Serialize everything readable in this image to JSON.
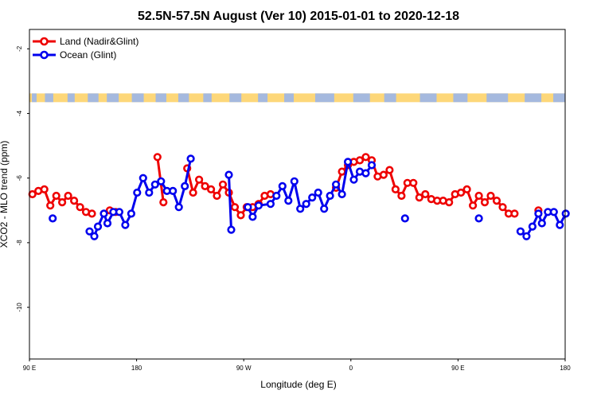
{
  "chart_data": {
    "type": "line",
    "title": "52.5N-57.5N August (Ver 10)   2015-01-01 to 2020-12-18",
    "xlabel": "Longitude (deg E)",
    "ylabel": "XCO2 - MLO trend (ppm)",
    "xlim": [
      90,
      540
    ],
    "ylim": [
      -11.6,
      -1.4
    ],
    "x_ticks": [
      {
        "value": 90,
        "label": "90 E"
      },
      {
        "value": 180,
        "label": "180"
      },
      {
        "value": 270,
        "label": "90 W"
      },
      {
        "value": 360,
        "label": "0"
      },
      {
        "value": 450,
        "label": "90 E"
      },
      {
        "value": 540,
        "label": "180"
      }
    ],
    "y_ticks": [
      {
        "value": -2,
        "label": "-2"
      },
      {
        "value": -4,
        "label": "-4"
      },
      {
        "value": -6,
        "label": "-6"
      },
      {
        "value": -8,
        "label": "-8"
      },
      {
        "value": -10,
        "label": "-10"
      }
    ],
    "land_band": {
      "ymin": -3.65,
      "ymax": -3.38,
      "ocean_color": "#a5b9de",
      "land_color": "#fdd779"
    },
    "series": [
      {
        "name": "Land (Nadir&Glint)",
        "color": "#ee0000",
        "segments": [
          [
            [
              92.5,
              -6.5
            ],
            [
              97.5,
              -6.4
            ],
            [
              102.5,
              -6.35
            ],
            [
              107.5,
              -6.85
            ],
            [
              112.5,
              -6.55
            ],
            [
              117.5,
              -6.75
            ],
            [
              122.5,
              -6.55
            ],
            [
              127.5,
              -6.7
            ],
            [
              132.5,
              -6.9
            ],
            [
              137.5,
              -7.05
            ],
            [
              142.5,
              -7.1
            ]
          ],
          [
            [
              157.5,
              -7.0
            ],
            [
              162.5,
              -7.05
            ]
          ],
          [
            [
              197.5,
              -5.35
            ],
            [
              202.5,
              -6.75
            ]
          ],
          [
            [
              222.5,
              -5.7
            ],
            [
              227.5,
              -6.45
            ],
            [
              232.5,
              -6.05
            ],
            [
              237.5,
              -6.25
            ],
            [
              242.5,
              -6.35
            ],
            [
              247.5,
              -6.55
            ],
            [
              252.5,
              -6.2
            ],
            [
              257.5,
              -6.45
            ],
            [
              262.5,
              -6.9
            ],
            [
              267.5,
              -7.15
            ],
            [
              272.5,
              -6.9
            ],
            [
              277.5,
              -6.9
            ],
            [
              282.5,
              -6.8
            ],
            [
              287.5,
              -6.55
            ],
            [
              292.5,
              -6.5
            ]
          ],
          [
            [
              347.5,
              -6.3
            ],
            [
              352.5,
              -5.8
            ],
            [
              357.5,
              -5.6
            ],
            [
              362.5,
              -5.5
            ],
            [
              367.5,
              -5.45
            ],
            [
              372.5,
              -5.35
            ],
            [
              377.5,
              -5.45
            ],
            [
              382.5,
              -5.95
            ],
            [
              387.5,
              -5.9
            ],
            [
              392.5,
              -5.75
            ],
            [
              397.5,
              -6.35
            ],
            [
              402.5,
              -6.55
            ],
            [
              407.5,
              -6.15
            ],
            [
              412.5,
              -6.15
            ],
            [
              417.5,
              -6.6
            ],
            [
              422.5,
              -6.5
            ],
            [
              427.5,
              -6.65
            ],
            [
              432.5,
              -6.7
            ],
            [
              437.5,
              -6.7
            ],
            [
              442.5,
              -6.75
            ],
            [
              447.5,
              -6.5
            ],
            [
              452.5,
              -6.45
            ],
            [
              457.5,
              -6.35
            ],
            [
              462.5,
              -6.85
            ],
            [
              467.5,
              -6.55
            ],
            [
              472.5,
              -6.75
            ],
            [
              477.5,
              -6.55
            ],
            [
              482.5,
              -6.7
            ],
            [
              487.5,
              -6.9
            ],
            [
              492.5,
              -7.1
            ],
            [
              497.5,
              -7.1
            ]
          ],
          [
            [
              517.5,
              -7.0
            ]
          ]
        ]
      },
      {
        "name": "Ocean (Glint)",
        "color": "#0000ee",
        "segments": [
          [
            [
              109.5,
              -7.25
            ]
          ],
          [
            [
              140.5,
              -7.65
            ],
            [
              144.5,
              -7.8
            ],
            [
              147.5,
              -7.5
            ],
            [
              152.5,
              -7.1
            ],
            [
              155.5,
              -7.4
            ],
            [
              160.5,
              -7.05
            ],
            [
              165.5,
              -7.05
            ],
            [
              170.5,
              -7.45
            ],
            [
              175.5,
              -7.1
            ],
            [
              180.5,
              -6.45
            ],
            [
              185.5,
              -6.0
            ],
            [
              190.5,
              -6.45
            ],
            [
              195.5,
              -6.2
            ],
            [
              200.5,
              -6.1
            ],
            [
              205.5,
              -6.4
            ],
            [
              210.5,
              -6.4
            ],
            [
              215.5,
              -6.9
            ],
            [
              220.5,
              -6.25
            ],
            [
              225.5,
              -5.4
            ]
          ],
          [
            [
              257.5,
              -5.9
            ],
            [
              259.5,
              -7.6
            ]
          ],
          [
            [
              273.5,
              -6.9
            ],
            [
              277.5,
              -7.2
            ],
            [
              282.5,
              -6.85
            ],
            [
              292.5,
              -6.8
            ],
            [
              297.5,
              -6.55
            ],
            [
              302.5,
              -6.25
            ],
            [
              307.5,
              -6.7
            ],
            [
              312.5,
              -6.1
            ],
            [
              317.5,
              -6.95
            ],
            [
              322.5,
              -6.8
            ],
            [
              327.5,
              -6.6
            ],
            [
              332.5,
              -6.45
            ],
            [
              337.5,
              -6.95
            ],
            [
              342.5,
              -6.55
            ],
            [
              347.5,
              -6.2
            ],
            [
              352.5,
              -6.5
            ],
            [
              357.5,
              -5.5
            ],
            [
              362.5,
              -6.05
            ],
            [
              367.5,
              -5.8
            ],
            [
              372.5,
              -5.85
            ],
            [
              377.5,
              -5.6
            ]
          ],
          [
            [
              405.5,
              -7.25
            ]
          ],
          [
            [
              467.5,
              -7.25
            ]
          ],
          [
            [
              502.5,
              -7.65
            ],
            [
              507.5,
              -7.8
            ],
            [
              512.5,
              -7.5
            ],
            [
              517.5,
              -7.1
            ],
            [
              520.5,
              -7.4
            ],
            [
              525.5,
              -7.05
            ],
            [
              530.5,
              -7.05
            ],
            [
              535.5,
              -7.45
            ],
            [
              540.5,
              -7.1
            ]
          ]
        ]
      }
    ]
  }
}
